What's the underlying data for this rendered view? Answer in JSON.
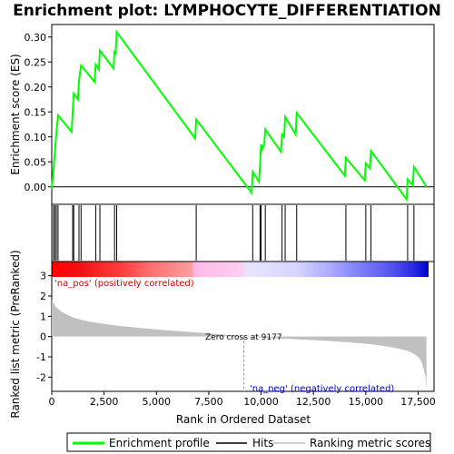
{
  "chart_data": {
    "type": "line",
    "title": "Enrichment plot: LYMPHOCYTE_DIFFERENTIATION",
    "xlabel": "Rank in Ordered Dataset",
    "top_ylabel": "Enrichment score (ES)",
    "bottom_ylabel": "Ranked list metric (PreRanked)",
    "xlim": [
      0,
      18000
    ],
    "x_ticks": [
      0,
      2500,
      5000,
      7500,
      10000,
      12500,
      15000,
      17500
    ],
    "x_tick_labels": [
      "0",
      "2,500",
      "5,000",
      "7,500",
      "10,000",
      "12,500",
      "15,000",
      "17,500"
    ],
    "es_ylim": [
      -0.035,
      0.325
    ],
    "es_ticks": [
      0.0,
      0.05,
      0.1,
      0.15,
      0.2,
      0.25,
      0.3
    ],
    "es_tick_labels": [
      "0.00",
      "0.05",
      "0.10",
      "0.15",
      "0.20",
      "0.25",
      "0.30"
    ],
    "metric_ylim": [
      -2.7,
      3.7
    ],
    "metric_ticks": [
      -2,
      -1,
      0,
      1,
      2,
      3
    ],
    "metric_tick_labels": [
      "-2",
      "-1",
      "0",
      "1",
      "2",
      "3"
    ],
    "enrichment_profile": {
      "x": [
        0,
        80,
        150,
        220,
        300,
        950,
        1000,
        1050,
        1250,
        1300,
        1400,
        2050,
        2100,
        2250,
        2300,
        2950,
        3000,
        3050,
        3100,
        6850,
        6900,
        9550,
        9600,
        9900,
        9950,
        10000,
        10050,
        10150,
        10200,
        10950,
        11000,
        11100,
        11150,
        11650,
        11700,
        14000,
        14050,
        14950,
        15000,
        15200,
        15250,
        16950,
        17000,
        17250,
        17300,
        17900
      ],
      "y": [
        -0.005,
        0.032,
        0.07,
        0.107,
        0.143,
        0.11,
        0.15,
        0.187,
        0.175,
        0.212,
        0.243,
        0.21,
        0.245,
        0.235,
        0.273,
        0.237,
        0.273,
        0.265,
        0.31,
        0.097,
        0.135,
        -0.012,
        0.03,
        0.01,
        0.045,
        0.085,
        0.075,
        0.085,
        0.115,
        0.07,
        0.105,
        0.1,
        0.14,
        0.105,
        0.148,
        0.022,
        0.058,
        0.013,
        0.047,
        0.037,
        0.072,
        -0.025,
        0.015,
        0.003,
        0.04,
        0.0
      ]
    },
    "hits": [
      80,
      150,
      220,
      300,
      1000,
      1050,
      1300,
      1400,
      2100,
      2300,
      3000,
      3100,
      6900,
      9600,
      9950,
      10000,
      10200,
      11000,
      11150,
      11700,
      14050,
      15000,
      15250,
      17000,
      17300
    ],
    "ranking_metric": {
      "x": [
        0,
        200,
        500,
        1000,
        1500,
        2000,
        3000,
        4000,
        5000,
        6000,
        7000,
        8000,
        9177,
        10000,
        11000,
        12000,
        13000,
        14000,
        15000,
        15800,
        16500,
        17000,
        17300,
        17500,
        17650,
        17750,
        17850,
        17900
      ],
      "y": [
        1.8,
        1.45,
        1.2,
        0.95,
        0.8,
        0.7,
        0.55,
        0.45,
        0.35,
        0.27,
        0.2,
        0.12,
        0.0,
        -0.05,
        -0.1,
        -0.15,
        -0.2,
        -0.27,
        -0.35,
        -0.45,
        -0.58,
        -0.7,
        -0.85,
        -1.0,
        -1.2,
        -1.5,
        -2.0,
        -2.6
      ]
    },
    "zero_cross_rank": 9177,
    "zero_cross_label": "Zero cross at 9177",
    "pos_label": "'na_pos' (positively correlated)",
    "neg_label": "'na_neg' (negatively correlated)",
    "legend_placement": "bottom",
    "legend": [
      {
        "label": "Enrichment profile",
        "color": "#00ff00"
      },
      {
        "label": "Hits",
        "color": "#000000"
      },
      {
        "label": "Ranking metric scores",
        "color": "#c0c0c0"
      }
    ],
    "colors": {
      "profile": "#00ff00",
      "metric_fill": "#c0c0c0",
      "pos_text": "#cc0000",
      "neg_text": "#0000cc"
    }
  }
}
